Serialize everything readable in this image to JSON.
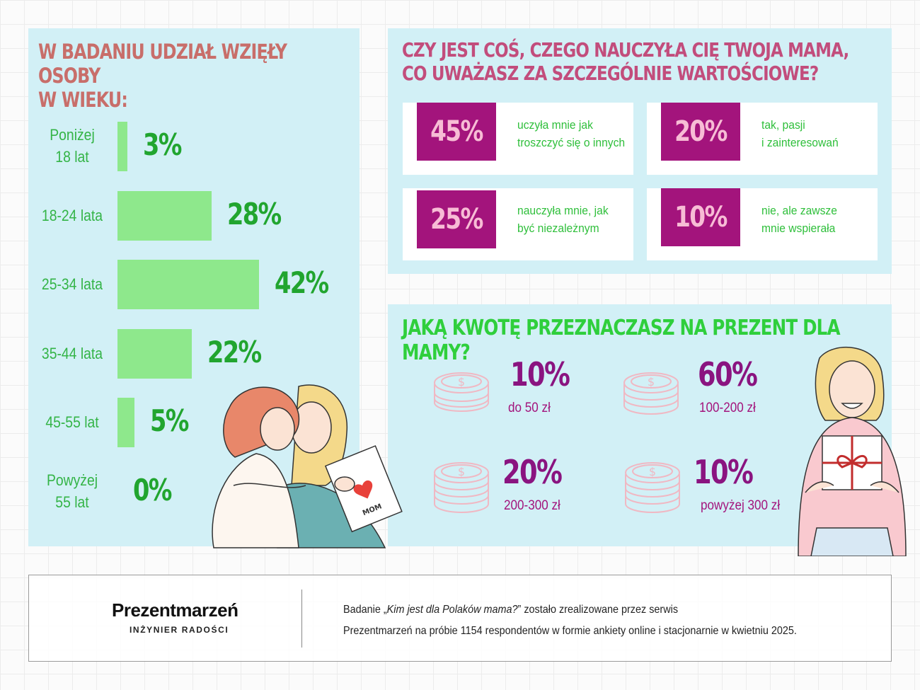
{
  "age_panel": {
    "title_line1": "W BADANIU UDZIAŁ WZIĘŁY OSOBY",
    "title_line2": "W WIEKU:"
  },
  "mom_panel": {
    "title_line1": "CZY JEST COŚ, CZEGO NAUCZYŁA CIĘ TWOJA MAMA,",
    "title_line2": "CO UWAŻASZ ZA SZCZEGÓLNIE WARTOŚCIOWE?",
    "cards": [
      {
        "pct": "45%",
        "line1": "uczyła mnie jak",
        "line2": "troszczyć się o innych"
      },
      {
        "pct": "20%",
        "line1": "tak, pasji",
        "line2": "i zainteresowań"
      },
      {
        "pct": "25%",
        "line1": "nauczyła mnie, jak",
        "line2": "być niezależnym"
      },
      {
        "pct": "10%",
        "line1": "nie, ale zawsze",
        "line2": "mnie wspierała"
      }
    ]
  },
  "gift_panel": {
    "title": "JAKĄ KWOTĘ PRZEZNACZASZ NA PREZENT DLA MAMY?",
    "items": [
      {
        "pct": "10%",
        "range": "do 50 zł"
      },
      {
        "pct": "60%",
        "range": "100-200 zł"
      },
      {
        "pct": "20%",
        "range": "200-300 zł"
      },
      {
        "pct": "10%",
        "range": "powyżej 300 zł"
      }
    ]
  },
  "illustration": {
    "card_text": "MOM"
  },
  "footer": {
    "brand": "Prezentmarzeń",
    "tagline": "INŻYNIER RADOŚCI",
    "line1_pre": "Badanie „",
    "line1_italic": "Kim jest dla Polaków mama?",
    "line1_post": "” zostało zrealizowane przez serwis",
    "line2": "Prezentmarzeń na próbie 1154 respondentów w formie ankiety online i stacjonarnie w kwietniu 2025."
  },
  "colors": {
    "panel_bg": "#d2f0f6",
    "age_bar": "#8ee88c",
    "age_text": "#34b447",
    "magenta": "#a3147c",
    "card_pct_text": "#f7bcd5",
    "gift_title": "#2fcf3c",
    "coin_stroke": "#f0b8c3"
  },
  "icons": [
    "coin-stack-icon",
    "heart-icon",
    "gift-box-icon"
  ],
  "chart_data": [
    {
      "type": "bar",
      "orientation": "horizontal",
      "title": "W BADANIU UDZIAŁ WZIĘŁY OSOBY W WIEKU:",
      "categories": [
        "Poniżej 18 lat",
        "18-24 lata",
        "25-34 lata",
        "35-44 lata",
        "45-55 lat",
        "Powyżej 55 lat"
      ],
      "category_lines": [
        [
          "Poniżej",
          "18 lat"
        ],
        [
          "18-24 lata"
        ],
        [
          "25-34 lata"
        ],
        [
          "35-44 lata"
        ],
        [
          "45-55 lat"
        ],
        [
          "Powyżej",
          "55 lat"
        ]
      ],
      "values": [
        3,
        28,
        42,
        22,
        5,
        0
      ],
      "value_labels": [
        "3%",
        "28%",
        "42%",
        "22%",
        "5%",
        "0%"
      ],
      "unit": "%"
    },
    {
      "type": "table",
      "title": "CZY JEST COŚ, CZEGO NAUCZYŁA CIĘ TWOJA MAMA, CO UWAŻASZ ZA SZCZEGÓLNIE WARTOŚCIOWE?",
      "categories": [
        "uczyła mnie jak troszczyć się o innych",
        "tak, pasji i zainteresowań",
        "nauczyła mnie, jak być niezależnym",
        "nie, ale zawsze mnie wspierała"
      ],
      "values": [
        45,
        20,
        25,
        10
      ],
      "unit": "%"
    },
    {
      "type": "table",
      "title": "JAKĄ KWOTĘ PRZEZNACZASZ NA PREZENT DLA MAMY?",
      "categories": [
        "do 50 zł",
        "100-200 zł",
        "200-300 zł",
        "powyżej 300 zł"
      ],
      "values": [
        10,
        60,
        20,
        10
      ],
      "unit": "%"
    }
  ]
}
